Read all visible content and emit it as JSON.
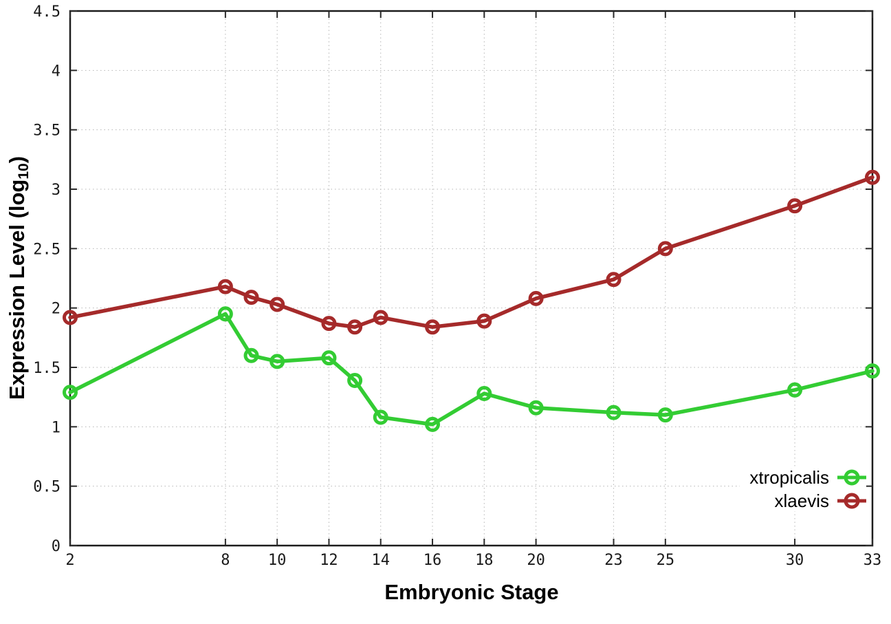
{
  "chart_data": {
    "type": "line",
    "title": "",
    "xlabel": "Embryonic Stage",
    "ylabel": "Expression Level (log10)",
    "ylabel_parts": {
      "prefix": "Expression Level (log",
      "sub": "10",
      "suffix": ")"
    },
    "x": [
      2,
      8,
      9,
      10,
      12,
      13,
      14,
      16,
      18,
      20,
      23,
      25,
      30,
      33
    ],
    "xtick_labels": [
      "2",
      "8",
      "10",
      "12",
      "14",
      "16",
      "18",
      "20",
      "23",
      "25",
      "30",
      "33"
    ],
    "xticks": [
      2,
      8,
      10,
      12,
      14,
      16,
      18,
      20,
      23,
      25,
      30,
      33
    ],
    "yticks": [
      0,
      0.5,
      1,
      1.5,
      2,
      2.5,
      3,
      3.5,
      4,
      4.5
    ],
    "ytick_labels": [
      "0",
      "0.5",
      "1",
      "1.5",
      "2",
      "2.5",
      "3",
      "3.5",
      "4",
      "4.5"
    ],
    "xlim": [
      2,
      33
    ],
    "ylim": [
      0,
      4.5
    ],
    "grid": true,
    "legend_position": "bottom-right",
    "series": [
      {
        "name": "xtropicalis",
        "color": "#33cc33",
        "values": [
          1.29,
          1.95,
          1.6,
          1.55,
          1.58,
          1.39,
          1.08,
          1.02,
          1.28,
          1.16,
          1.12,
          1.1,
          1.31,
          1.47
        ]
      },
      {
        "name": "xlaevis",
        "color": "#a52a2a",
        "values": [
          1.92,
          2.18,
          2.09,
          2.03,
          1.87,
          1.84,
          1.92,
          1.84,
          1.89,
          2.08,
          2.24,
          2.5,
          2.86,
          3.1
        ]
      }
    ]
  },
  "style_colors": {
    "border": "#1c1c1c",
    "grid": "#b5b5b5",
    "tick": "#2a2a2a",
    "tick_label": "#1a1a1a"
  }
}
